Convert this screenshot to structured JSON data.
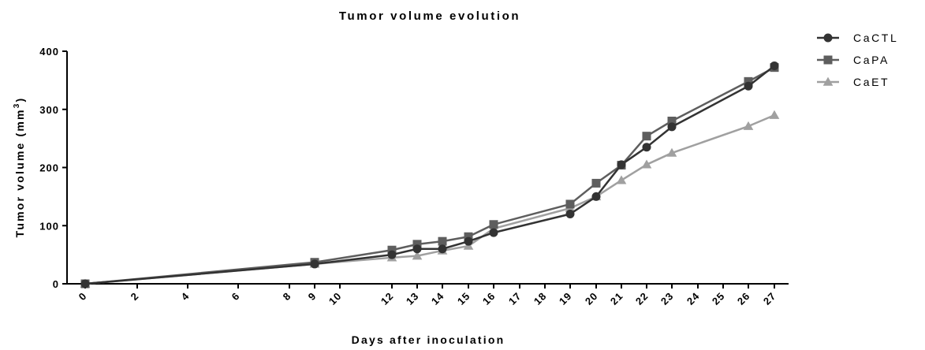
{
  "chart_data": {
    "type": "line",
    "title": "Tumor volume evolution",
    "xlabel": "Days after inoculation",
    "ylabel": "Tumor volume (mm",
    "ylabel_superscript": "3",
    "ylabel_suffix": ")",
    "ylim": [
      0,
      400
    ],
    "yticks": [
      0,
      100,
      200,
      300,
      400
    ],
    "x_tick_labels": [
      "0",
      "2",
      "4",
      "6",
      "8",
      "9",
      "10",
      "12",
      "13",
      "14",
      "15",
      "16",
      "17",
      "18",
      "19",
      "20",
      "21",
      "22",
      "23",
      "24",
      "25",
      "26",
      "27"
    ],
    "legend_position": "top-right",
    "series": [
      {
        "name": "CaCTL",
        "marker": "circle",
        "color": "#333333",
        "x": [
          "0",
          "9",
          "12",
          "13",
          "14",
          "15",
          "16",
          "19",
          "20",
          "21",
          "22",
          "23",
          "26",
          "27"
        ],
        "values": [
          0,
          34,
          50,
          60,
          60,
          73,
          88,
          120,
          150,
          205,
          235,
          270,
          340,
          375
        ]
      },
      {
        "name": "CaPA",
        "marker": "square",
        "color": "#5e5e5e",
        "x": [
          "0",
          "9",
          "12",
          "13",
          "14",
          "15",
          "16",
          "19",
          "20",
          "21",
          "22",
          "23",
          "26",
          "27"
        ],
        "values": [
          0,
          37,
          58,
          68,
          73,
          81,
          102,
          137,
          173,
          204,
          254,
          280,
          348,
          372
        ]
      },
      {
        "name": "CaET",
        "marker": "triangle",
        "color": "#a0a0a0",
        "x": [
          "0",
          "9",
          "12",
          "13",
          "14",
          "15",
          "16",
          "19",
          "20",
          "21",
          "22",
          "23",
          "26",
          "27"
        ],
        "values": [
          0,
          34,
          45,
          48,
          57,
          65,
          95,
          130,
          150,
          178,
          205,
          225,
          271,
          290
        ]
      }
    ]
  }
}
